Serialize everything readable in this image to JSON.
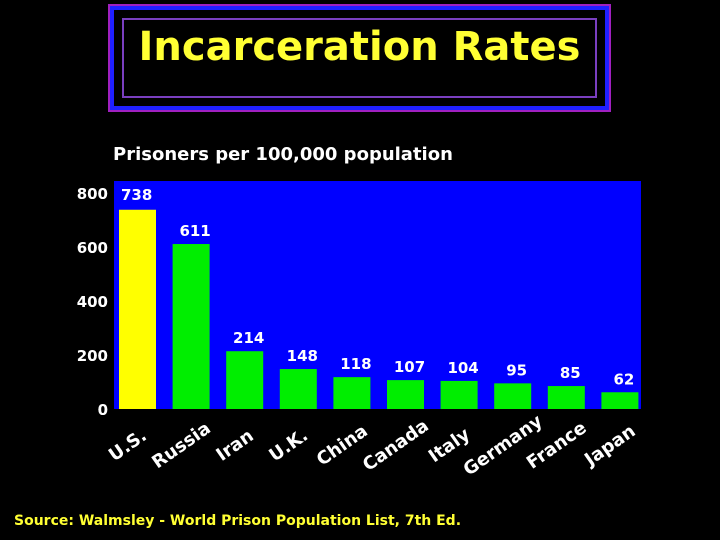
{
  "header": {
    "title": "Incarceration Rates"
  },
  "footer": {
    "source": "Source: Walmsley - World Prison Population List, 7th Ed."
  },
  "colors": {
    "plot_background": "#0000ff",
    "highlight_bar": "#ffff00",
    "bar": "#00ee00",
    "title_text": "#ffff33",
    "source_text": "#ffff33"
  },
  "chart_data": {
    "type": "bar",
    "title": "Prisoners per 100,000 population",
    "categories": [
      "U.S.",
      "Russia",
      "Iran",
      "U.K.",
      "China",
      "Canada",
      "Italy",
      "Germany",
      "France",
      "Japan"
    ],
    "values": [
      738,
      611,
      214,
      148,
      118,
      107,
      104,
      95,
      85,
      62
    ],
    "data_labels": [
      "738",
      "611",
      "214",
      "148",
      "118",
      "107",
      "104",
      "95",
      "85",
      "62"
    ],
    "highlight_category": "U.S.",
    "ylim": [
      0,
      800
    ],
    "yticks": [
      0,
      200,
      400,
      600,
      800
    ],
    "ytick_labels": [
      "0",
      "200",
      "400",
      "600",
      "800"
    ],
    "xlabel": "",
    "ylabel": "",
    "grid": false,
    "legend": "none"
  }
}
